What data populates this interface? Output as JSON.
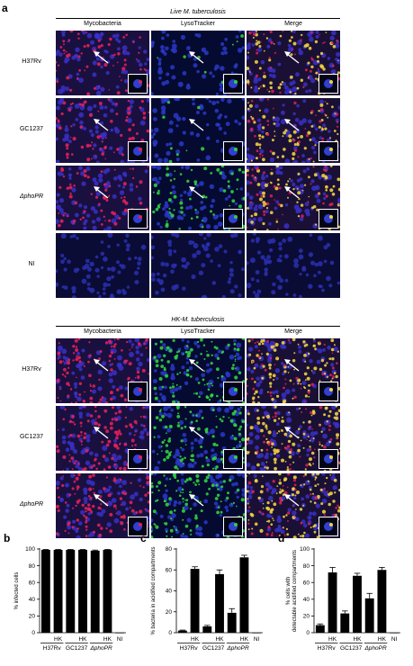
{
  "panel_a": {
    "letter": "a",
    "sections": [
      {
        "title": "Live M. tuberculosis",
        "columns": [
          "Mycobacteria",
          "LysoTracker",
          "Merge"
        ],
        "rows": [
          "H37Rv",
          "GC1237",
          "ΔphoPR",
          "NI"
        ]
      },
      {
        "title": "HK-M. tuberculosis",
        "columns": [
          "Mycobacteria",
          "LysoTracker",
          "Merge"
        ],
        "rows": [
          "H37Rv",
          "GC1237",
          "ΔphoPR"
        ]
      }
    ]
  },
  "chart_data": [
    {
      "panel": "b",
      "type": "bar",
      "ylabel": "% infected cells",
      "ylim": [
        0,
        100
      ],
      "yticks": [
        0,
        20,
        40,
        60,
        80,
        100
      ],
      "categories": [
        "H37Rv",
        "HK",
        "GC1237",
        "HK",
        "ΔphoPR",
        "HK",
        "NI"
      ],
      "group_labels": [
        "H37Rv",
        "GC1237",
        "ΔphoPR"
      ],
      "values": [
        99,
        99,
        99,
        99,
        98,
        99,
        0
      ],
      "errors": [
        0.5,
        0.5,
        0.5,
        0.5,
        0.7,
        0.5,
        0
      ]
    },
    {
      "panel": "c",
      "type": "bar",
      "ylabel": "% bacteria in acidified compartments",
      "ylim": [
        0,
        80
      ],
      "yticks": [
        0,
        20,
        40,
        60,
        80
      ],
      "categories": [
        "H37Rv",
        "HK",
        "GC1237",
        "HK",
        "ΔphoPR",
        "HK",
        "NI"
      ],
      "group_labels": [
        "H37Rv",
        "GC1237",
        "ΔphoPR"
      ],
      "values": [
        2,
        61,
        6,
        56,
        19,
        72,
        0
      ],
      "errors": [
        0.5,
        2,
        1,
        4,
        4,
        2,
        0
      ]
    },
    {
      "panel": "d",
      "type": "bar",
      "ylabel": "% cells with detectable acidified compartments",
      "ylim": [
        0,
        100
      ],
      "yticks": [
        0,
        20,
        40,
        60,
        80,
        100
      ],
      "categories": [
        "H37Rv",
        "HK",
        "GC1237",
        "HK",
        "ΔphoPR",
        "HK",
        "NI"
      ],
      "group_labels": [
        "H37Rv",
        "GC1237",
        "ΔphoPR"
      ],
      "values": [
        9,
        72,
        23,
        68,
        41,
        75,
        0
      ],
      "errors": [
        1.5,
        6,
        3,
        3,
        6,
        3,
        0
      ]
    }
  ]
}
